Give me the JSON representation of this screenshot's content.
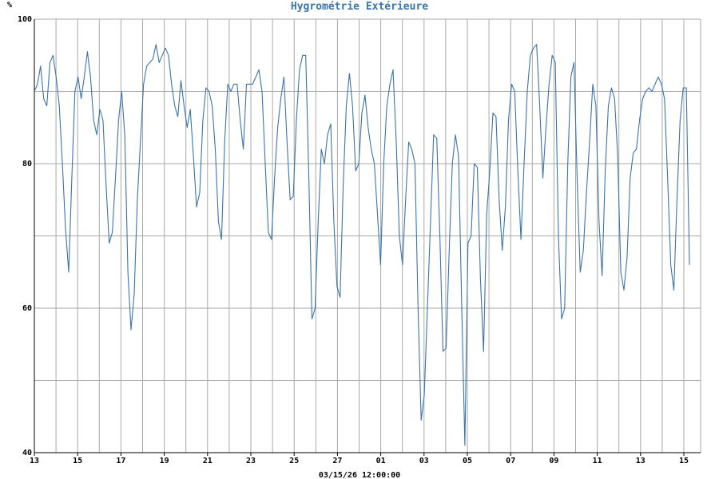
{
  "chart_data": {
    "type": "line",
    "title": "Hygrométrie Extérieure",
    "ylabel": "%",
    "footer_label": "03/15/26 12:00:00",
    "ylim": [
      40,
      100
    ],
    "y_ticks": [
      40,
      60,
      80,
      100
    ],
    "x_ticks": [
      "13",
      "15",
      "17",
      "19",
      "21",
      "23",
      "25",
      "27",
      "01",
      "03",
      "05",
      "07",
      "09",
      "11",
      "13",
      "15"
    ],
    "grid": true,
    "colors": {
      "line": "#3a74a8",
      "title": "#3a74a8",
      "grid": "#a8a8a8",
      "axis": "#000000"
    },
    "series": [
      {
        "values": [
          90,
          91,
          93.5,
          89,
          88,
          94,
          95,
          92,
          88,
          80,
          71,
          65,
          78,
          90,
          92,
          89,
          92,
          95.5,
          92,
          86,
          84,
          87.5,
          86,
          77,
          69,
          70.5,
          78,
          86,
          90,
          84,
          65,
          57,
          62,
          75,
          83,
          91,
          93.5,
          94,
          94.5,
          96.5,
          94,
          95,
          96,
          95,
          91,
          88,
          86.5,
          91.5,
          88,
          85,
          87.5,
          81,
          74,
          76,
          86,
          90.5,
          90,
          88,
          82,
          72,
          69.5,
          83,
          91,
          90,
          91,
          91,
          86,
          82,
          91,
          91,
          91,
          92,
          93,
          90,
          80,
          70.5,
          69.5,
          78,
          85,
          89,
          92,
          83,
          75,
          75.5,
          86,
          93,
          95,
          95,
          78,
          58.5,
          60,
          72,
          82,
          80,
          84,
          85.5,
          72,
          63,
          61.5,
          77,
          88,
          92.5,
          88,
          79,
          80,
          87,
          89.5,
          85,
          82,
          80,
          73,
          66,
          80,
          88,
          91,
          93,
          83,
          70,
          66,
          75,
          83,
          82,
          80,
          60,
          44.5,
          48,
          60,
          72,
          84,
          83.5,
          70,
          54,
          54.5,
          68,
          80,
          84,
          81,
          60,
          41,
          69,
          70,
          80,
          79.5,
          64,
          54,
          73,
          79,
          87,
          86.5,
          75,
          68,
          74,
          86,
          91,
          90,
          79,
          69.5,
          80,
          90,
          95,
          96,
          96.5,
          88,
          78,
          85,
          91,
          95,
          94,
          70,
          58.5,
          60,
          80,
          92,
          94,
          78,
          65,
          68,
          76,
          83,
          91,
          88,
          72,
          64.5,
          79,
          88,
          90.5,
          89,
          81,
          65,
          62.5,
          67,
          78,
          81.5,
          82,
          86,
          89,
          90,
          90.5,
          90,
          91,
          92,
          91,
          89,
          78,
          66,
          62.5,
          75,
          86,
          90.5,
          90.5,
          66
        ]
      }
    ]
  }
}
